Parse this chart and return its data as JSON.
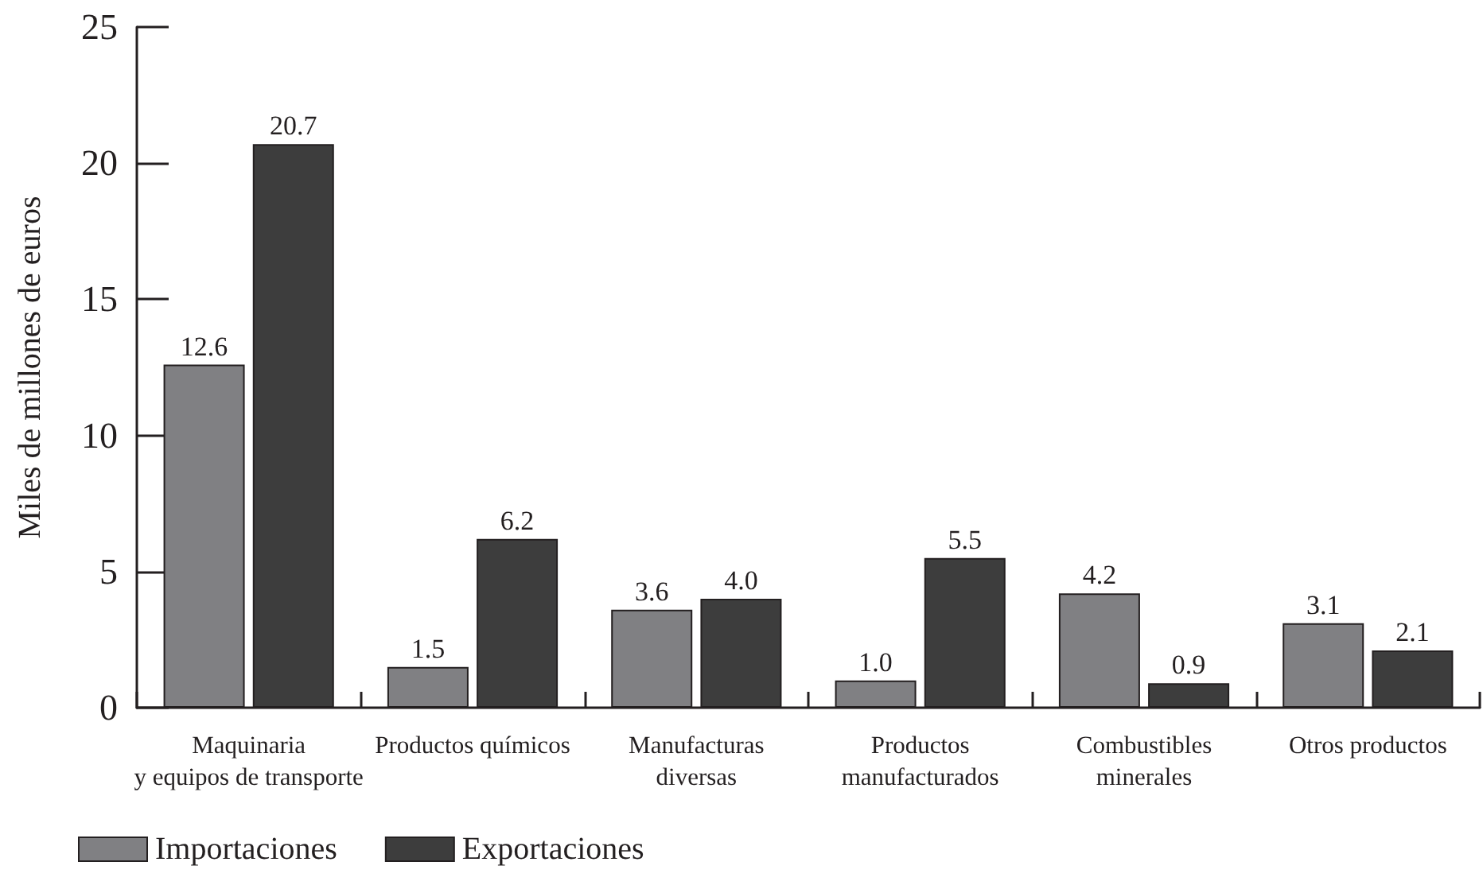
{
  "chart_data": {
    "type": "bar",
    "ylabel": "Miles de millones de euros",
    "categories": [
      "Maquinaria\ny equipos de transporte",
      "Productos químicos",
      "Manufacturas\ndiversas",
      "Productos\nmanufacturados",
      "Combustibles\nminerales",
      "Otros productos"
    ],
    "series": [
      {
        "name": "Importaciones",
        "color": "#808083",
        "values": [
          12.6,
          1.5,
          3.6,
          1.0,
          4.2,
          3.1
        ],
        "value_labels": [
          "12.6",
          "1.5",
          "3.6",
          "1.0",
          "4.2",
          "3.1"
        ]
      },
      {
        "name": "Exportaciones",
        "color": "#3d3d3d",
        "values": [
          20.7,
          6.2,
          4.0,
          5.5,
          0.9,
          2.1
        ],
        "value_labels": [
          "20.7",
          "6.2",
          "4.0",
          "5.5",
          "0.9",
          "2.1"
        ]
      }
    ],
    "ylim": [
      0,
      25
    ],
    "yticks": [
      0,
      5,
      10,
      15,
      20,
      25
    ],
    "legend": "bottom left"
  }
}
